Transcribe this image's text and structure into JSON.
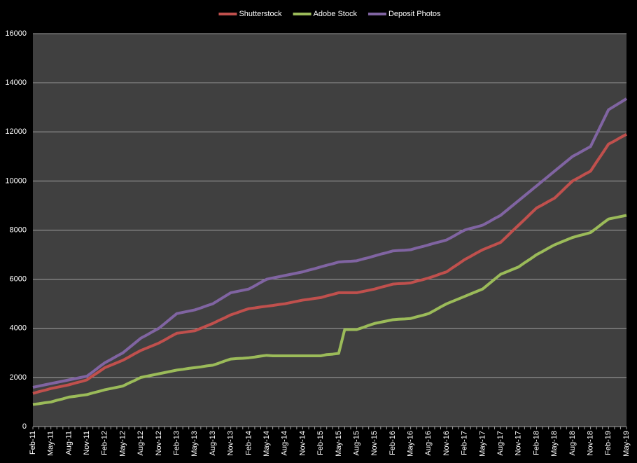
{
  "chart_data": {
    "type": "line",
    "categories": [
      "Feb-11",
      null,
      null,
      "May-11",
      null,
      null,
      "Aug-11",
      null,
      null,
      "Nov-11",
      null,
      null,
      "Feb-12",
      null,
      null,
      "May-12",
      null,
      null,
      "Aug-12",
      null,
      null,
      "Nov-12",
      null,
      null,
      "Feb-13",
      null,
      null,
      "May-13",
      null,
      null,
      "Aug-13",
      null,
      null,
      "Nov-13",
      null,
      null,
      "Feb-14",
      null,
      null,
      "May-14",
      null,
      null,
      "Aug-14",
      null,
      null,
      "Nov-14",
      null,
      null,
      "Feb-15",
      null,
      null,
      "May-15",
      null,
      null,
      "Aug-15",
      null,
      null,
      "Nov-15",
      null,
      null,
      "Feb-16",
      null,
      null,
      "May-16",
      null,
      null,
      "Aug-16",
      null,
      null,
      "Nov-16",
      null,
      null,
      "Feb-17",
      null,
      null,
      "May-17",
      null,
      null,
      "Aug-17",
      null,
      null,
      "Nov-17",
      null,
      null,
      "Feb-18",
      null,
      null,
      "May-18",
      null,
      null,
      "Aug-18",
      null,
      null,
      "Nov-18",
      null,
      null,
      "Feb-19",
      null,
      null,
      "May-19"
    ],
    "series": [
      {
        "name": "Shutterstock",
        "color": "#c0504d",
        "values": [
          1350,
          1420,
          1480,
          1550,
          1600,
          1650,
          1700,
          1770,
          1830,
          1900,
          2070,
          2230,
          2400,
          2500,
          2600,
          2700,
          2830,
          2970,
          3100,
          3200,
          3300,
          3400,
          3530,
          3670,
          3800,
          3830,
          3870,
          3900,
          4000,
          4100,
          4200,
          4320,
          4430,
          4550,
          4630,
          4720,
          4800,
          4830,
          4870,
          4900,
          4930,
          4970,
          5000,
          5050,
          5100,
          5150,
          5180,
          5220,
          5250,
          5320,
          5380,
          5450,
          5450,
          5450,
          5450,
          5500,
          5550,
          5600,
          5670,
          5730,
          5800,
          5820,
          5830,
          5850,
          5920,
          5980,
          6050,
          6130,
          6220,
          6300,
          6470,
          6630,
          6800,
          6930,
          7070,
          7200,
          7300,
          7400,
          7500,
          7730,
          7970,
          8200,
          8430,
          8670,
          8900,
          9030,
          9170,
          9300,
          9530,
          9770,
          10000,
          10130,
          10270,
          10400,
          10770,
          11130,
          11500,
          11630,
          11770,
          11900
        ]
      },
      {
        "name": "Adobe Stock",
        "color": "#9bbb59",
        "values": [
          900,
          930,
          970,
          1000,
          1070,
          1130,
          1200,
          1230,
          1270,
          1300,
          1370,
          1430,
          1500,
          1550,
          1600,
          1650,
          1770,
          1880,
          2000,
          2050,
          2100,
          2150,
          2200,
          2250,
          2300,
          2330,
          2370,
          2400,
          2430,
          2470,
          2500,
          2580,
          2670,
          2750,
          2770,
          2780,
          2800,
          2830,
          2870,
          2900,
          2880,
          2880,
          2880,
          2880,
          2880,
          2880,
          2880,
          2880,
          2880,
          2930,
          2950,
          2980,
          3950,
          3950,
          3950,
          4030,
          4120,
          4200,
          4250,
          4300,
          4350,
          4370,
          4380,
          4400,
          4470,
          4530,
          4600,
          4730,
          4870,
          5000,
          5100,
          5200,
          5300,
          5400,
          5500,
          5600,
          5800,
          6000,
          6200,
          6300,
          6400,
          6500,
          6670,
          6830,
          7000,
          7130,
          7270,
          7400,
          7500,
          7600,
          7700,
          7770,
          7830,
          7900,
          8080,
          8270,
          8450,
          8500,
          8550,
          8600
        ]
      },
      {
        "name": "Deposit Photos",
        "color": "#8064a2",
        "values": [
          1600,
          1650,
          1700,
          1750,
          1800,
          1850,
          1900,
          1950,
          2000,
          2050,
          2230,
          2420,
          2600,
          2730,
          2870,
          3000,
          3200,
          3400,
          3600,
          3730,
          3870,
          4000,
          4200,
          4400,
          4600,
          4650,
          4700,
          4750,
          4830,
          4920,
          5000,
          5150,
          5300,
          5450,
          5500,
          5550,
          5600,
          5730,
          5870,
          6000,
          6050,
          6100,
          6150,
          6200,
          6250,
          6300,
          6370,
          6430,
          6500,
          6570,
          6630,
          6700,
          6720,
          6730,
          6750,
          6820,
          6880,
          6950,
          7020,
          7080,
          7150,
          7170,
          7180,
          7200,
          7270,
          7330,
          7400,
          7470,
          7530,
          7600,
          7730,
          7870,
          8000,
          8070,
          8130,
          8200,
          8330,
          8470,
          8600,
          8800,
          9000,
          9200,
          9400,
          9600,
          9800,
          10000,
          10200,
          10400,
          10600,
          10800,
          11000,
          11130,
          11270,
          11400,
          11900,
          12400,
          12900,
          13050,
          13200,
          13350
        ]
      }
    ],
    "ylim": [
      0,
      16000
    ],
    "yticks": [
      0,
      2000,
      4000,
      6000,
      8000,
      10000,
      12000,
      14000,
      16000
    ],
    "grid": true,
    "legend": "top"
  }
}
